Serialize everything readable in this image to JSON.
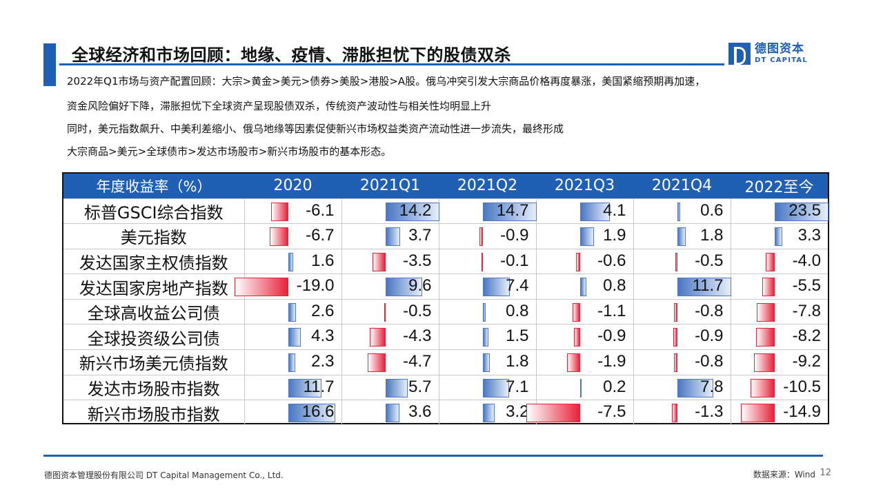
{
  "title": "全球经济和市场回顾：地缘、疫情、滞胀担忧下的股债双杀",
  "logo": {
    "cn": "德图资本",
    "en": "DT CAPITAL"
  },
  "paragraphs": [
    "2022年Q1市场与资产配置回顾：大宗>黄金>美元>债券>美股>港股>A股。俄乌冲突引发大宗商品价格再度暴涨，美国紧缩预期再加速，",
    "资金风险偏好下降，滞胀担忧下全球资产呈现股债双杀，传统资产波动性与相关性均明显上升",
    "同时，美元指数飙升、中美利差缩小、俄乌地缘等因素促使新兴市场权益类资产流动性进一步流失，最终形成",
    "大宗商品>美元>全球债市>发达市场股市>新兴市场股市的基本形态。"
  ],
  "table": {
    "header": [
      "年度收益率（%）",
      "2020",
      "2021Q1",
      "2021Q2",
      "2021Q3",
      "2021Q4",
      "2022至今"
    ],
    "rows": [
      {
        "name": "标普GSCI综合指数",
        "values": [
          -6.1,
          14.2,
          14.7,
          4.1,
          0.6,
          23.5
        ],
        "labels": [
          "-6.1",
          "14.2",
          "14.7",
          "4.1",
          "0.6",
          "23.5"
        ]
      },
      {
        "name": "美元指数",
        "values": [
          -6.7,
          3.7,
          -0.9,
          1.9,
          1.8,
          3.3
        ],
        "labels": [
          "-6.7",
          "3.7",
          "-0.9",
          "1.9",
          "1.8",
          "3.3"
        ]
      },
      {
        "name": "发达国家主权债指数",
        "values": [
          1.6,
          -3.5,
          -0.1,
          -0.6,
          -0.5,
          -4.0
        ],
        "labels": [
          "1.6",
          "-3.5",
          "-0.1",
          "-0.6",
          "-0.5",
          "-4.0"
        ]
      },
      {
        "name": "发达国家房地产指数",
        "values": [
          -19.0,
          9.6,
          7.4,
          0.8,
          11.7,
          -5.5
        ],
        "labels": [
          "-19.0",
          "9.6",
          "7.4",
          "0.8",
          "11.7",
          "-5.5"
        ]
      },
      {
        "name": "全球高收益公司债",
        "values": [
          2.6,
          -0.5,
          0.8,
          -1.1,
          -0.8,
          -7.8
        ],
        "labels": [
          "2.6",
          "-0.5",
          "0.8",
          "-1.1",
          "-0.8",
          "-7.8"
        ]
      },
      {
        "name": "全球投资级公司债",
        "values": [
          4.3,
          -4.3,
          1.5,
          -0.9,
          -0.9,
          -8.2
        ],
        "labels": [
          "4.3",
          "-4.3",
          "1.5",
          "-0.9",
          "-0.9",
          "-8.2"
        ]
      },
      {
        "name": "新兴市场美元债指数",
        "values": [
          2.3,
          -4.7,
          1.8,
          -1.9,
          -0.8,
          -9.2
        ],
        "labels": [
          "2.3",
          "-4.7",
          "1.8",
          "-1.9",
          "-0.8",
          "-9.2"
        ]
      },
      {
        "name": "发达市场股市指数",
        "values": [
          11.7,
          5.7,
          7.1,
          0.2,
          7.8,
          -10.5
        ],
        "labels": [
          "11.7",
          "5.7",
          "7.1",
          "0.2",
          "7.8",
          "-10.5"
        ]
      },
      {
        "name": "新兴市场股市指数",
        "values": [
          16.6,
          3.6,
          3.2,
          -7.5,
          -1.3,
          -14.9
        ],
        "labels": [
          "16.6",
          "3.6",
          "3.2",
          "-7.5",
          "-1.3",
          "-14.9"
        ]
      }
    ]
  },
  "colors": {
    "accent": "#1f5fb4",
    "positive": "#4a78c2",
    "negative": "#e8223a"
  },
  "footer": {
    "company": "德图资本管理股份有限公司  DT Capital Management Co., Ltd.",
    "source": "数据来源：Wind",
    "page": "12"
  }
}
